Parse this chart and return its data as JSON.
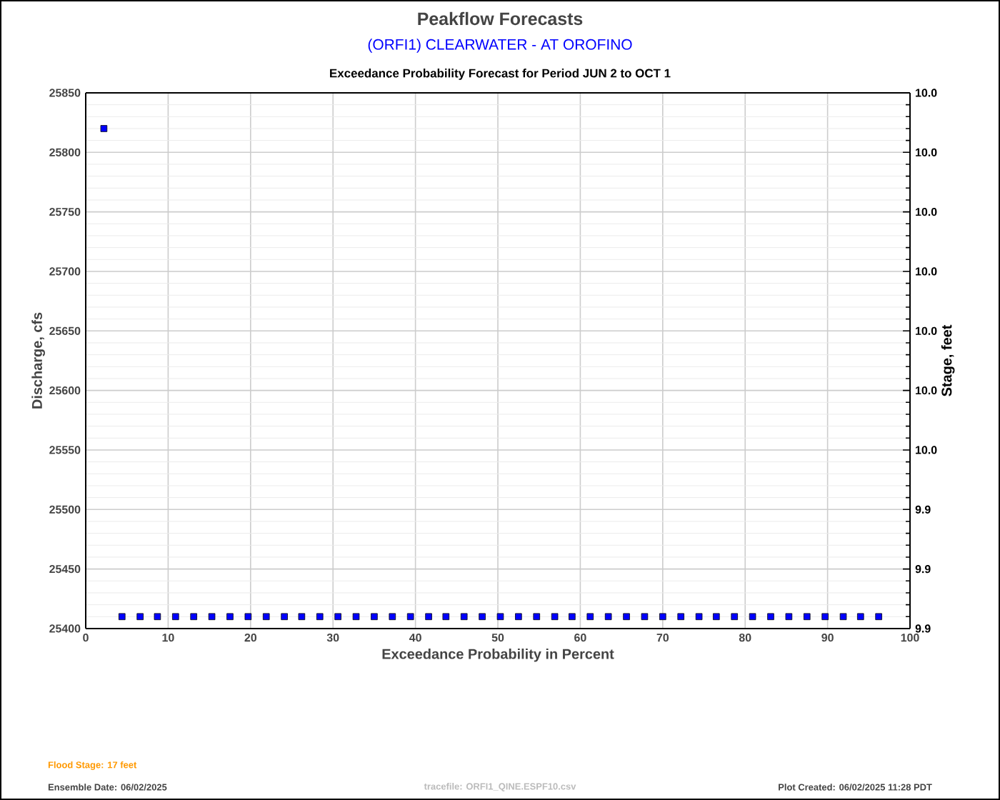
{
  "chart_data": {
    "type": "scatter",
    "title": "Peakflow Forecasts",
    "subtitle": "(ORFI1) CLEARWATER - AT OROFINO",
    "annotations": [
      "Exceedance Probability Forecast for Period JUN 2 to OCT 1",
      "Flood Stage: 17 feet",
      "Ensemble Date: 06/02/2025",
      "tracefile: ORFI1_QINE.ESPF10.csv",
      "Plot Created: 06/02/2025 11:28 PDT"
    ],
    "xlabel": "Exceedance Probability in Percent",
    "ylabel": "Discharge, cfs",
    "y2label": "Stage, feet",
    "x": [
      2.2,
      4.4,
      6.6,
      8.7,
      10.9,
      13.1,
      15.3,
      17.5,
      19.7,
      21.9,
      24.1,
      26.2,
      28.4,
      30.6,
      32.8,
      35.0,
      37.2,
      39.4,
      41.6,
      43.7,
      45.9,
      48.1,
      50.3,
      52.5,
      54.7,
      56.9,
      59.0,
      61.2,
      63.4,
      65.6,
      67.8,
      70.0,
      72.2,
      74.4,
      76.5,
      78.7,
      80.9,
      83.1,
      85.3,
      87.5,
      89.7,
      91.9,
      94.0,
      96.2
    ],
    "series": [
      {
        "color": "#0000ff",
        "values": [
          25820,
          25410,
          25410,
          25410,
          25410,
          25410,
          25410,
          25410,
          25410,
          25410,
          25410,
          25410,
          25410,
          25410,
          25410,
          25410,
          25410,
          25410,
          25410,
          25410,
          25410,
          25410,
          25410,
          25410,
          25410,
          25410,
          25410,
          25410,
          25410,
          25410,
          25410,
          25410,
          25410,
          25410,
          25410,
          25410,
          25410,
          25410,
          25410,
          25410,
          25410,
          25410,
          25410,
          25410
        ]
      }
    ],
    "xlim": [
      0,
      100
    ],
    "xticks": [
      0,
      10,
      20,
      30,
      40,
      50,
      60,
      70,
      80,
      90,
      100
    ],
    "ylim": [
      25400,
      25850
    ],
    "yticks": [
      25400,
      25450,
      25500,
      25550,
      25600,
      25650,
      25700,
      25750,
      25800,
      25850
    ],
    "y2lim": [
      9.92,
      10.01
    ],
    "y2ticks": [
      {
        "value": 9.92,
        "label": "9.9"
      },
      {
        "value": 9.93,
        "label": "9.9"
      },
      {
        "value": 9.94,
        "label": "9.9"
      },
      {
        "value": 9.95,
        "label": "10.0"
      },
      {
        "value": 9.96,
        "label": "10.0"
      },
      {
        "value": 9.97,
        "label": "10.0"
      },
      {
        "value": 9.98,
        "label": "10.0"
      },
      {
        "value": 9.99,
        "label": "10.0"
      },
      {
        "value": 10.0,
        "label": "10.0"
      },
      {
        "value": 10.01,
        "label": "10.0"
      }
    ],
    "grid": true,
    "marker": "square"
  }
}
